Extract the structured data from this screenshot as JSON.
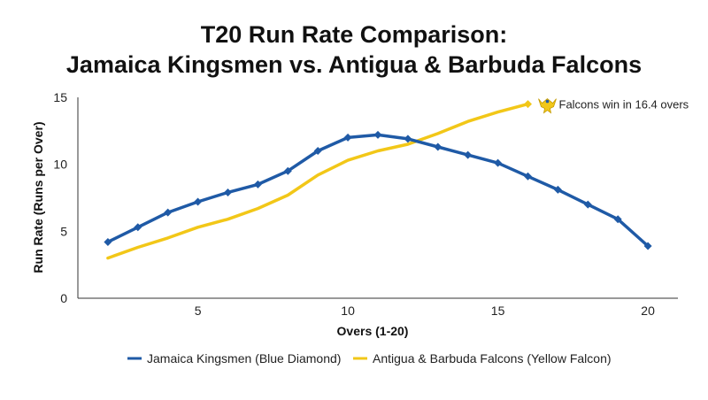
{
  "chart_data": {
    "type": "line",
    "title_lines": [
      "T20 Run Rate Comparison:",
      "Jamaica Kingsmen vs. Antigua & Barbuda Falcons"
    ],
    "xlabel": "Overs (1-20)",
    "ylabel": "Run Rate (Runs per Over)",
    "xlim": [
      1,
      21
    ],
    "ylim": [
      0,
      15
    ],
    "x_ticks": [
      5,
      10,
      15,
      20
    ],
    "y_ticks": [
      0,
      5,
      10,
      15
    ],
    "grid": false,
    "legend_position": "bottom",
    "series": [
      {
        "name": "Jamaica Kingsmen (Blue Diamond)",
        "color": "#1f5aa6",
        "marker": "diamond",
        "x": [
          2,
          3,
          4,
          5,
          6,
          7,
          8,
          9,
          10,
          11,
          12,
          13,
          14,
          15,
          16,
          17,
          18,
          19,
          20
        ],
        "y": [
          4.2,
          5.3,
          6.4,
          7.2,
          7.9,
          8.5,
          9.5,
          11.0,
          12.0,
          12.2,
          11.9,
          11.3,
          10.7,
          10.1,
          9.1,
          8.1,
          7.0,
          5.9,
          3.9
        ]
      },
      {
        "name": "Antigua & Barbuda Falcons (Yellow Falcon)",
        "color": "#f2c718",
        "marker": "none",
        "x": [
          2,
          3,
          4,
          5,
          6,
          7,
          8,
          9,
          10,
          11,
          12,
          13,
          14,
          15,
          16
        ],
        "y": [
          3.0,
          3.8,
          4.5,
          5.3,
          5.9,
          6.7,
          7.7,
          9.2,
          10.3,
          11.0,
          11.5,
          12.3,
          13.2,
          13.9,
          14.5
        ]
      }
    ],
    "annotation": {
      "text": "Falcons win in 16.4 overs",
      "x": 16,
      "y": 14.5,
      "icon": "falcon-icon"
    }
  }
}
